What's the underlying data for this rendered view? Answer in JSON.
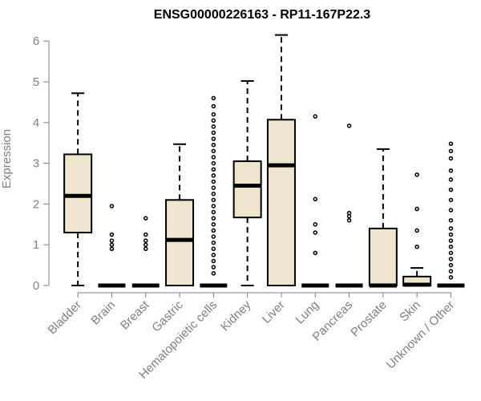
{
  "chart_data": {
    "type": "boxplot",
    "title": "ENSG00000226163 - RP11-167P22.3",
    "xlabel": "",
    "ylabel": "Expression",
    "ylim": [
      0,
      6.2
    ],
    "yticks": [
      0,
      1,
      2,
      3,
      4,
      5,
      6
    ],
    "grid": false,
    "colors": {
      "box_fill": "#ede6cd",
      "box_stroke": "#000000",
      "axis": "#808080",
      "text": "#808080"
    },
    "categories": [
      "Bladder",
      "Brain",
      "Breast",
      "Gastric",
      "Hematopoietic cells",
      "Kidney",
      "Liver",
      "Lung",
      "Pancreas",
      "Prostate",
      "Skin",
      "Unknown / Other"
    ],
    "boxes": [
      {
        "min": 0,
        "q1": 1.3,
        "median": 2.2,
        "q3": 3.22,
        "max": 4.72,
        "outliers": []
      },
      {
        "min": 0,
        "q1": 0,
        "median": 0,
        "q3": 0,
        "max": 0,
        "outliers": [
          0.9,
          1.0,
          1.1,
          1.25,
          1.95
        ]
      },
      {
        "min": 0,
        "q1": 0,
        "median": 0,
        "q3": 0,
        "max": 0,
        "outliers": [
          0.9,
          1.0,
          1.1,
          1.25,
          1.65
        ]
      },
      {
        "min": 0,
        "q1": 0,
        "median": 1.12,
        "q3": 2.1,
        "max": 3.47,
        "outliers": []
      },
      {
        "min": 0,
        "q1": 0,
        "median": 0,
        "q3": 0,
        "max": 0,
        "outliers": [
          0.3,
          0.45,
          0.6,
          0.75,
          0.9,
          1.05,
          1.2,
          1.35,
          1.5,
          1.65,
          1.8,
          1.95,
          2.1,
          2.25,
          2.4,
          2.55,
          2.7,
          2.85,
          3.0,
          3.15,
          3.3,
          3.45,
          3.6,
          3.75,
          3.9,
          4.05,
          4.2,
          4.4,
          4.6
        ]
      },
      {
        "min": 0,
        "q1": 1.67,
        "median": 2.45,
        "q3": 3.05,
        "max": 5.02,
        "outliers": []
      },
      {
        "min": 0,
        "q1": 0,
        "median": 2.95,
        "q3": 4.07,
        "max": 6.15,
        "outliers": []
      },
      {
        "min": 0,
        "q1": 0,
        "median": 0,
        "q3": 0,
        "max": 0,
        "outliers": [
          0.8,
          1.3,
          1.5,
          2.12,
          4.15
        ]
      },
      {
        "min": 0,
        "q1": 0,
        "median": 0,
        "q3": 0,
        "max": 0,
        "outliers": [
          1.6,
          1.7,
          1.78,
          3.92
        ]
      },
      {
        "min": 0,
        "q1": 0,
        "median": 0,
        "q3": 1.4,
        "max": 3.35,
        "outliers": []
      },
      {
        "min": 0,
        "q1": 0,
        "median": 0.02,
        "q3": 0.22,
        "max": 0.43,
        "outliers": [
          0.95,
          1.35,
          1.88,
          2.72
        ]
      },
      {
        "min": 0,
        "q1": 0,
        "median": 0,
        "q3": 0,
        "max": 0,
        "outliers": [
          0.2,
          0.35,
          0.5,
          0.65,
          0.8,
          0.95,
          1.1,
          1.25,
          1.4,
          1.6,
          1.85,
          2.1,
          2.35,
          2.6,
          2.82,
          3.12,
          3.3,
          3.48
        ]
      }
    ]
  }
}
